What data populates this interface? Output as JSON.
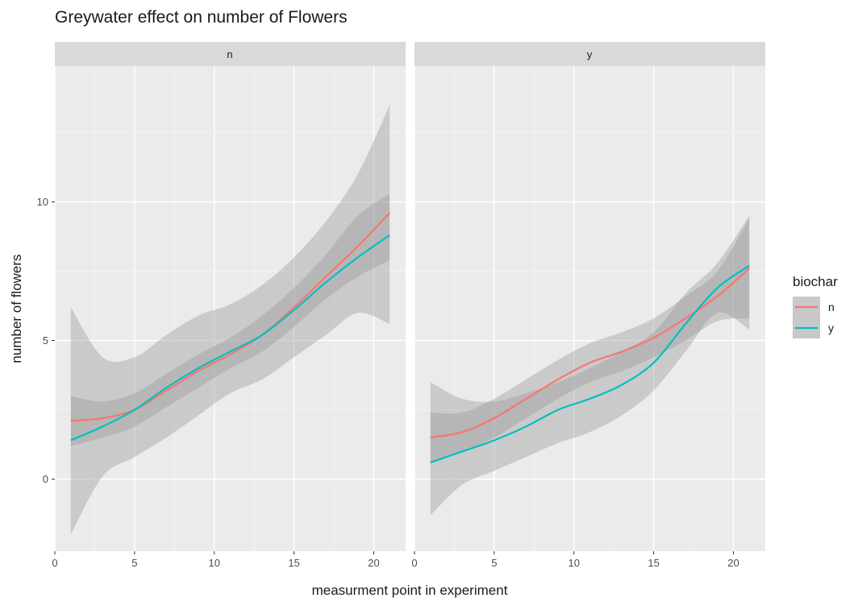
{
  "chart_data": {
    "type": "line",
    "title": "Greywater effect on number of Flowers",
    "xlabel": "measurment point in experiment",
    "ylabel": "number of flowers",
    "xlim": [
      0,
      22
    ],
    "ylim": [
      -2.6,
      14.9
    ],
    "x_ticks": [
      0,
      5,
      10,
      15,
      20
    ],
    "y_ticks": [
      0,
      5,
      10
    ],
    "grid": true,
    "legend": {
      "title": "biochar",
      "position": "right",
      "entries": [
        {
          "label": "n",
          "color": "#F8766D"
        },
        {
          "label": "y",
          "color": "#00BFC4"
        }
      ]
    },
    "panels": [
      {
        "strip": "n",
        "series": [
          {
            "name": "n",
            "color": "#F8766D",
            "x": [
              1,
              3,
              5,
              7,
              9,
              11,
              13,
              15,
              17,
              19,
              21
            ],
            "y": [
              2.1,
              2.2,
              2.5,
              3.2,
              3.9,
              4.5,
              5.2,
              6.2,
              7.3,
              8.4,
              9.6
            ],
            "ci_low": [
              1.2,
              1.5,
              1.9,
              2.6,
              3.3,
              4.0,
              4.6,
              5.5,
              6.5,
              7.3,
              7.9
            ],
            "ci_high": [
              3.0,
              2.8,
              3.1,
              3.8,
              4.5,
              5.1,
              5.9,
              6.9,
              8.1,
              9.5,
              10.3
            ]
          },
          {
            "name": "y",
            "color": "#00BFC4",
            "x": [
              1,
              3,
              5,
              7,
              9,
              11,
              13,
              15,
              17,
              19,
              21
            ],
            "y": [
              1.4,
              1.9,
              2.5,
              3.3,
              4.0,
              4.6,
              5.2,
              6.1,
              7.1,
              8.0,
              8.8
            ],
            "ci_low": [
              -2.0,
              0.1,
              0.8,
              1.5,
              2.3,
              3.1,
              3.6,
              4.4,
              5.2,
              6.0,
              5.6
            ],
            "ci_high": [
              6.2,
              4.4,
              4.4,
              5.2,
              5.9,
              6.3,
              7.0,
              8.0,
              9.3,
              11.0,
              13.5
            ]
          }
        ]
      },
      {
        "strip": "y",
        "series": [
          {
            "name": "n",
            "color": "#F8766D",
            "x": [
              1,
              3,
              5,
              7,
              9,
              11,
              13,
              15,
              17,
              19,
              21
            ],
            "y": [
              1.5,
              1.7,
              2.2,
              2.9,
              3.6,
              4.2,
              4.6,
              5.1,
              5.8,
              6.6,
              7.6
            ],
            "ci_low": [
              0.6,
              1.0,
              1.5,
              2.2,
              2.9,
              3.5,
              3.9,
              4.4,
              5.0,
              5.7,
              5.8
            ],
            "ci_high": [
              2.4,
              2.4,
              2.9,
              3.6,
              4.3,
              4.9,
              5.3,
              5.8,
              6.6,
              7.5,
              9.4
            ]
          },
          {
            "name": "y",
            "color": "#00BFC4",
            "x": [
              1,
              3,
              5,
              7,
              9,
              11,
              13,
              15,
              17,
              19,
              21
            ],
            "y": [
              0.6,
              1.0,
              1.4,
              1.9,
              2.5,
              2.9,
              3.4,
              4.2,
              5.6,
              6.9,
              7.7
            ],
            "ci_low": [
              -1.3,
              -0.2,
              0.3,
              0.8,
              1.3,
              1.7,
              2.3,
              3.2,
              4.6,
              6.0,
              5.4
            ],
            "ci_high": [
              3.5,
              2.9,
              2.8,
              3.1,
              3.5,
              4.0,
              4.6,
              5.3,
              6.7,
              7.8,
              9.5
            ]
          }
        ]
      }
    ]
  }
}
